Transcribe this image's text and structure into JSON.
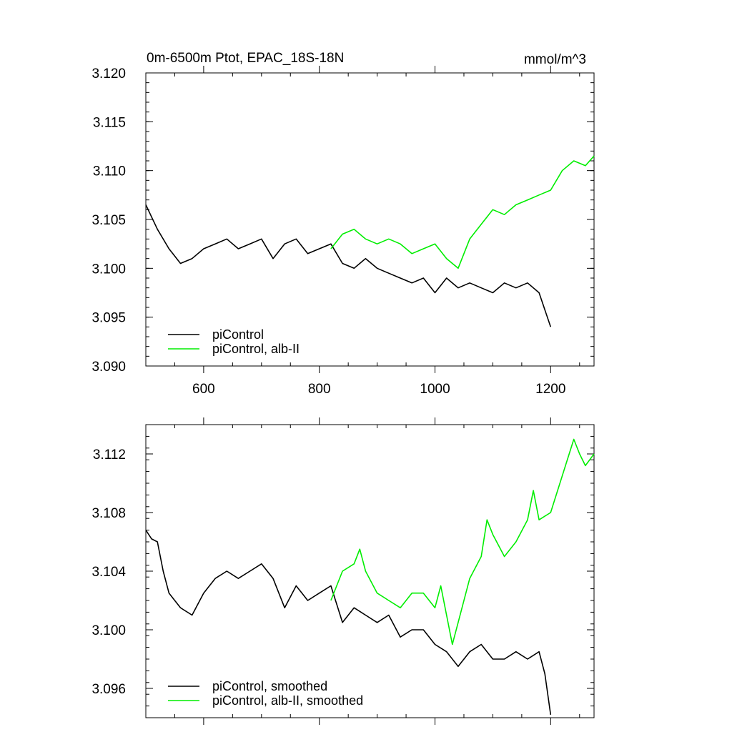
{
  "chart_data": [
    {
      "type": "line",
      "title": "0m-6500m Ptot, EPAC_18S-18N",
      "units": "mmol/m^3",
      "xlim": [
        500,
        1275
      ],
      "ylim": [
        3.09,
        3.12
      ],
      "xticks": [
        "600",
        "800",
        "1000",
        "1200"
      ],
      "yticks": [
        "3.090",
        "3.095",
        "3.100",
        "3.105",
        "3.110",
        "3.115",
        "3.120"
      ],
      "legend_position": "lower-left",
      "series": [
        {
          "name": "piControl",
          "color": "#000000",
          "x": [
            500,
            520,
            540,
            560,
            580,
            600,
            620,
            640,
            660,
            680,
            700,
            720,
            740,
            760,
            780,
            800,
            820,
            840,
            860,
            880,
            900,
            920,
            940,
            960,
            980,
            1000,
            1020,
            1040,
            1060,
            1080,
            1100,
            1120,
            1140,
            1160,
            1180,
            1200
          ],
          "y": [
            3.1065,
            3.104,
            3.102,
            3.1005,
            3.101,
            3.102,
            3.1025,
            3.103,
            3.102,
            3.1025,
            3.103,
            3.101,
            3.1025,
            3.103,
            3.1015,
            3.102,
            3.1025,
            3.1005,
            3.1,
            3.101,
            3.1,
            3.0995,
            3.099,
            3.0985,
            3.099,
            3.0975,
            3.099,
            3.098,
            3.0985,
            3.098,
            3.0975,
            3.0985,
            3.098,
            3.0985,
            3.0975,
            3.094
          ]
        },
        {
          "name": "piControl, alb-II",
          "color": "#00ee00",
          "x": [
            820,
            840,
            860,
            880,
            900,
            920,
            940,
            960,
            980,
            1000,
            1020,
            1040,
            1060,
            1080,
            1100,
            1120,
            1140,
            1160,
            1180,
            1200,
            1220,
            1240,
            1260,
            1275
          ],
          "y": [
            3.102,
            3.1035,
            3.104,
            3.103,
            3.1025,
            3.103,
            3.1025,
            3.1015,
            3.102,
            3.1025,
            3.101,
            3.1,
            3.103,
            3.1045,
            3.106,
            3.1055,
            3.1065,
            3.107,
            3.1075,
            3.108,
            3.11,
            3.111,
            3.1105,
            3.1115
          ]
        }
      ]
    },
    {
      "type": "line",
      "xlim": [
        500,
        1275
      ],
      "ylim": [
        3.094,
        3.114
      ],
      "yticks": [
        "3.096",
        "3.100",
        "3.104",
        "3.108",
        "3.112"
      ],
      "legend_position": "lower-left",
      "series": [
        {
          "name": "piControl, smoothed",
          "color": "#000000",
          "x": [
            500,
            510,
            520,
            530,
            540,
            560,
            580,
            600,
            620,
            640,
            660,
            680,
            700,
            720,
            740,
            760,
            780,
            800,
            820,
            840,
            860,
            880,
            900,
            920,
            940,
            960,
            980,
            1000,
            1020,
            1040,
            1060,
            1080,
            1100,
            1120,
            1140,
            1160,
            1180,
            1190,
            1200
          ],
          "y": [
            3.1068,
            3.1062,
            3.106,
            3.104,
            3.1025,
            3.1015,
            3.101,
            3.1025,
            3.1035,
            3.104,
            3.1035,
            3.104,
            3.1045,
            3.1035,
            3.1015,
            3.103,
            3.102,
            3.1025,
            3.103,
            3.1005,
            3.1015,
            3.101,
            3.1005,
            3.101,
            3.0995,
            3.1,
            3.1,
            3.099,
            3.0985,
            3.0975,
            3.0985,
            3.099,
            3.098,
            3.098,
            3.0985,
            3.098,
            3.0985,
            3.097,
            3.0942
          ]
        },
        {
          "name": "piControl, alb-II, smoothed",
          "color": "#00ee00",
          "x": [
            820,
            840,
            860,
            870,
            880,
            900,
            920,
            940,
            960,
            980,
            1000,
            1010,
            1020,
            1030,
            1040,
            1060,
            1080,
            1090,
            1100,
            1120,
            1140,
            1160,
            1170,
            1180,
            1200,
            1220,
            1240,
            1250,
            1260,
            1275
          ],
          "y": [
            3.102,
            3.104,
            3.1045,
            3.1055,
            3.104,
            3.1025,
            3.102,
            3.1015,
            3.1025,
            3.1025,
            3.1015,
            3.103,
            3.101,
            3.099,
            3.1005,
            3.1035,
            3.105,
            3.1075,
            3.1065,
            3.105,
            3.106,
            3.1075,
            3.1095,
            3.1075,
            3.108,
            3.1105,
            3.113,
            3.112,
            3.1112,
            3.112
          ]
        }
      ]
    }
  ]
}
